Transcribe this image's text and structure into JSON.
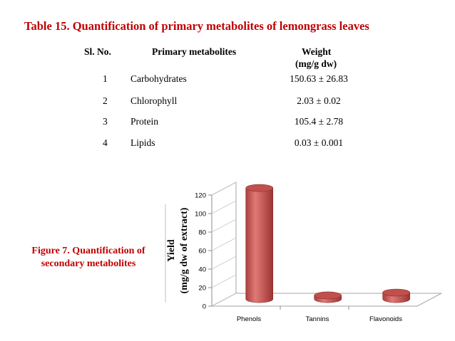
{
  "table": {
    "title": "Table 15. Quantification of primary metabolites of lemongrass leaves",
    "headers": {
      "sl_no": "Sl. No.",
      "metabolite": "Primary metabolites",
      "weight_line1": "Weight",
      "weight_line2": "(mg/g dw)"
    },
    "rows": [
      {
        "sl": "1",
        "name": "Carbohydrates",
        "weight": "150.63 ± 26.83"
      },
      {
        "sl": "2",
        "name": "Chlorophyll",
        "weight": "2.03 ± 0.02"
      },
      {
        "sl": "3",
        "name": "Protein",
        "weight": "105.4 ± 2.78"
      },
      {
        "sl": "4",
        "name": "Lipids",
        "weight": "0.03 ± 0.001"
      }
    ]
  },
  "figure": {
    "caption_line1": "Figure 7. Quantification of",
    "caption_line2": "secondary metabolites"
  },
  "chart_data": {
    "type": "bar",
    "categories": [
      "Phenols",
      "Tannins",
      "Flavonoids"
    ],
    "values": [
      120,
      4,
      7
    ],
    "ylabel_line1": "Yield",
    "ylabel_line2": "(mg/g dw of extract)",
    "xlabel": "",
    "ylim": [
      0,
      120
    ],
    "yticks": [
      0,
      20,
      40,
      60,
      80,
      100,
      120
    ],
    "grid": false,
    "legend": "none",
    "bar_color": "#c0504d",
    "bar_highlight": "#e07a77",
    "bar_shadow": "#8c2d2a"
  }
}
